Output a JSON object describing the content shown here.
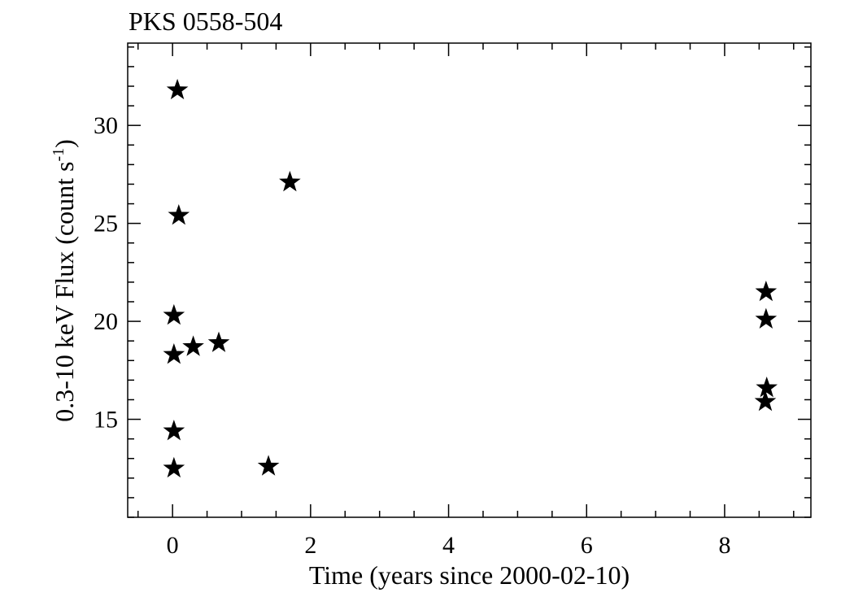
{
  "chart_data": {
    "type": "scatter",
    "title": "PKS 0558-504",
    "xlabel": "Time (years since 2000-02-10)",
    "ylabel": "0.3-10 keV Flux (count s",
    "ylabel_sup": "-1",
    "ylabel_suffix": ")",
    "xlim": [
      -0.65,
      9.25
    ],
    "ylim": [
      10.0,
      34.2
    ],
    "x_major_ticks": [
      0,
      2,
      4,
      6,
      8
    ],
    "x_tick_labels": [
      "0",
      "2",
      "4",
      "6",
      "8"
    ],
    "x_minor_step": 0.5,
    "y_major_ticks": [
      15,
      20,
      25,
      30
    ],
    "y_tick_labels": [
      "15",
      "20",
      "25",
      "30"
    ],
    "y_minor_step": 1,
    "marker": "star",
    "marker_color": "#000000",
    "grid": false,
    "series": [
      {
        "points": [
          {
            "x": 0.07,
            "y": 31.8
          },
          {
            "x": 1.7,
            "y": 27.1
          },
          {
            "x": 0.09,
            "y": 25.4
          },
          {
            "x": 0.02,
            "y": 20.3
          },
          {
            "x": 0.02,
            "y": 18.3
          },
          {
            "x": 0.3,
            "y": 18.7
          },
          {
            "x": 0.67,
            "y": 18.9
          },
          {
            "x": 0.02,
            "y": 14.4
          },
          {
            "x": 0.02,
            "y": 12.5
          },
          {
            "x": 1.39,
            "y": 12.6
          },
          {
            "x": 8.6,
            "y": 21.5
          },
          {
            "x": 8.6,
            "y": 20.1
          },
          {
            "x": 8.61,
            "y": 16.6
          },
          {
            "x": 8.59,
            "y": 15.9
          }
        ]
      }
    ]
  }
}
